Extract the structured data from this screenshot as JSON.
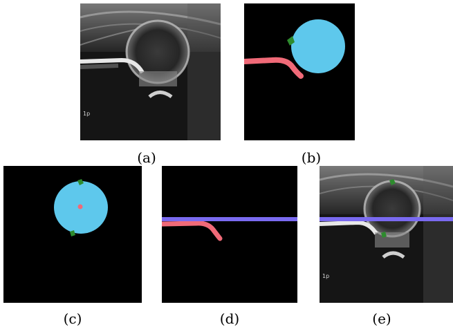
{
  "panels": [
    {
      "id": "a",
      "caption": "(a)",
      "overlay_text": "1p"
    },
    {
      "id": "b",
      "caption": "(b)"
    },
    {
      "id": "c",
      "caption": "(c)"
    },
    {
      "id": "d",
      "caption": "(d)"
    },
    {
      "id": "e",
      "caption": "(e)",
      "overlay_text": "1p"
    }
  ],
  "colors": {
    "femoral_head": "#5ec8ec",
    "ilium_line": "#f06a78",
    "landmark_green": "#2e8b2e",
    "center_pink": "#f06a78",
    "baseline": "#7a6af0",
    "background": "#000000"
  }
}
